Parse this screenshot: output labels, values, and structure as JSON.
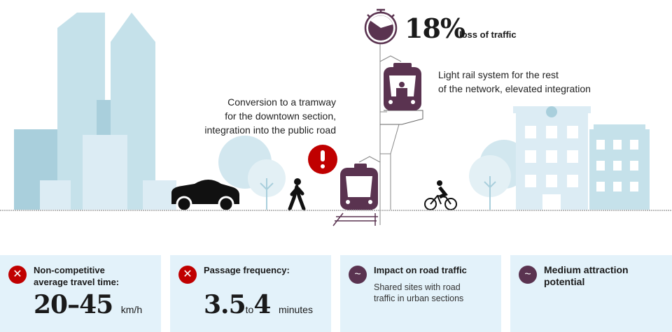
{
  "colors": {
    "accent_dark": "#5a3350",
    "alert": "#c00000",
    "sky_building": "#c5e1ea",
    "card_bg": "#e3f2fa"
  },
  "stat": {
    "value": "18%",
    "label": "loss of traffic",
    "icon": "stopwatch-icon"
  },
  "annotations": {
    "light_rail": [
      "Light rail system for the rest",
      "of the network, elevated integration"
    ],
    "tramway": [
      "Conversion to a tramway",
      "for the downtown section,",
      "integration into the public road"
    ]
  },
  "cards": [
    {
      "icon": "x-icon",
      "status": "negative",
      "title": "Non-competitive average travel time:",
      "value_from": "20",
      "sep": "–",
      "value_to": "45",
      "unit": "km/h"
    },
    {
      "icon": "x-icon",
      "status": "negative",
      "title": "Passage frequency:",
      "value_from": "3.5",
      "sep": "to",
      "value_to": "4",
      "unit": "minutes"
    },
    {
      "icon": "tilde-icon",
      "status": "neutral",
      "title": "Impact on road traffic",
      "description": "Shared sites with road traffic in urban sections"
    },
    {
      "icon": "tilde-icon",
      "status": "neutral",
      "title": "Medium attraction potential"
    }
  ]
}
